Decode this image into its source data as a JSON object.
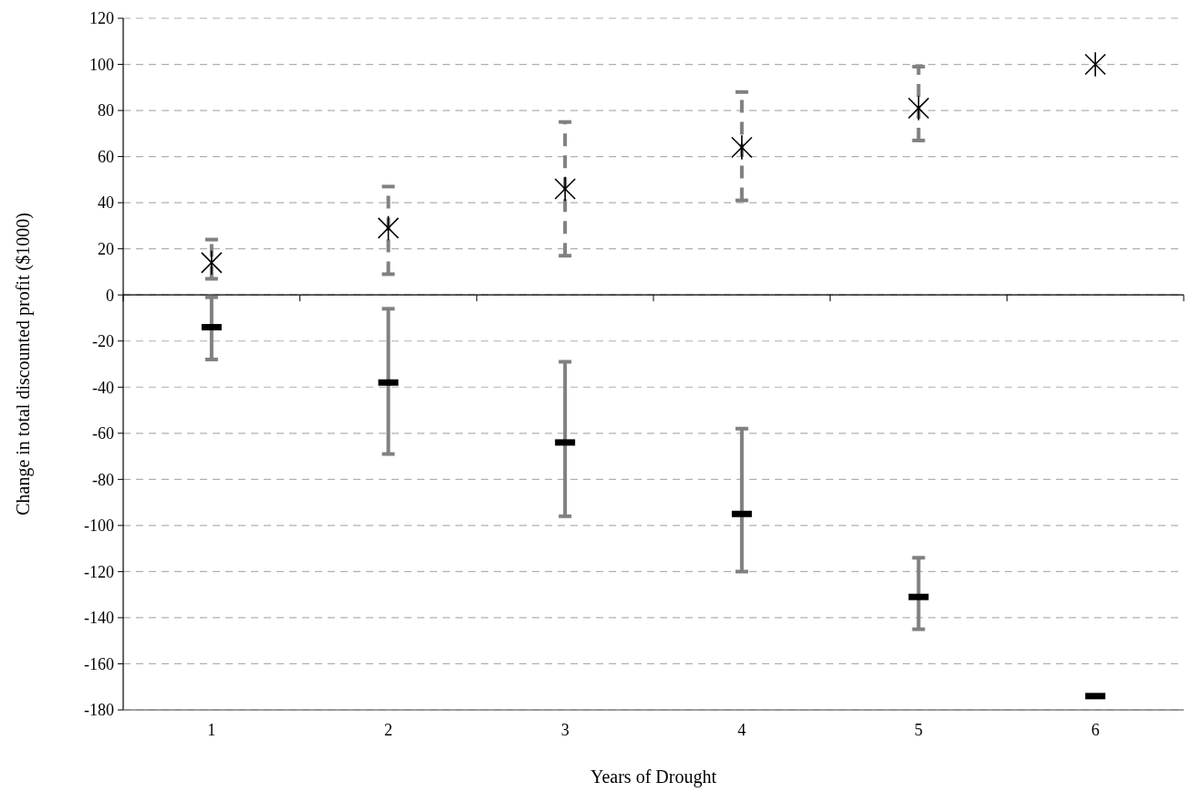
{
  "chart_data": {
    "type": "scatter",
    "xlabel": "Years of Drought",
    "ylabel": "Change in total discounted profit ($1000)",
    "categories": [
      "1",
      "2",
      "3",
      "4",
      "5",
      "6"
    ],
    "ylim": [
      -180,
      120
    ],
    "yticks": [
      -180,
      -160,
      -140,
      -120,
      -100,
      -80,
      -60,
      -40,
      -20,
      0,
      20,
      40,
      60,
      80,
      100,
      120
    ],
    "grid": "y",
    "series": [
      {
        "color": "#000000",
        "marker": "cross",
        "line_style": "dashed",
        "values": [
          14,
          29,
          46,
          64,
          81,
          100
        ],
        "errors": [
          [
            7,
            24
          ],
          [
            9,
            47
          ],
          [
            17,
            75
          ],
          [
            41,
            88
          ],
          [
            67,
            99
          ],
          null
        ]
      },
      {
        "color": "#000000",
        "marker": "square",
        "line_style": "solid",
        "values": [
          -14,
          -38,
          -64,
          -95,
          -131,
          -174
        ],
        "errors": [
          [
            -28,
            -1
          ],
          [
            -69,
            -6
          ],
          [
            -96,
            -29
          ],
          [
            -120,
            -58
          ],
          [
            -145,
            -114
          ],
          null
        ]
      }
    ]
  }
}
